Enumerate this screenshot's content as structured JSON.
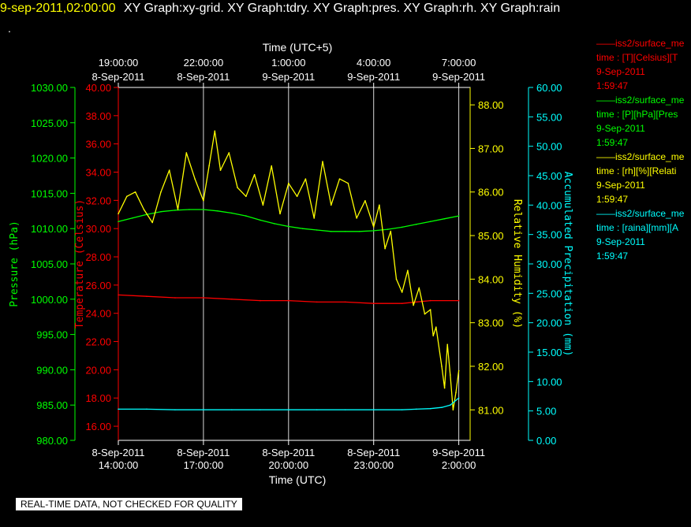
{
  "header": {
    "stamp": "9-sep-2011,02:00:00",
    "title": "XY Graph:xy-grid.  XY Graph:tdry.  XY Graph:pres.  XY Graph:rh.  XY Graph:rain",
    "dot": "."
  },
  "warning": "REAL-TIME DATA, NOT CHECKED FOR QUALITY",
  "legend": [
    {
      "line1": "——iss2/surface_me",
      "line2": "time : [T][Celsius][T",
      "line3": "9-Sep-2011",
      "line4": "1:59:47",
      "color": "#ff0000"
    },
    {
      "line1": "——iss2/surface_me",
      "line2": "time : [P][hPa][Pres",
      "line3": "9-Sep-2011",
      "line4": "1:59:47",
      "color": "#00ff00"
    },
    {
      "line1": "——iss2/surface_me",
      "line2": "time : [rh][%][Relati",
      "line3": "9-Sep-2011",
      "line4": "1:59:47",
      "color": "#ffff00"
    },
    {
      "line1": "——iss2/surface_me",
      "line2": "time : [raina][mm][A",
      "line3": "9-Sep-2011",
      "line4": "1:59:47",
      "color": "#00ffff"
    }
  ],
  "chart_data": {
    "type": "line",
    "x_bottom": {
      "label": "Time (UTC)",
      "ticks": [
        {
          "date": "8-Sep-2011",
          "time": "14:00:00",
          "hour": 0
        },
        {
          "date": "8-Sep-2011",
          "time": "17:00:00",
          "hour": 3
        },
        {
          "date": "8-Sep-2011",
          "time": "20:00:00",
          "hour": 6
        },
        {
          "date": "8-Sep-2011",
          "time": "23:00:00",
          "hour": 9
        },
        {
          "date": "9-Sep-2011",
          "time": "2:00:00",
          "hour": 12
        }
      ]
    },
    "x_top": {
      "label": "Time (UTC+5)",
      "ticks": [
        {
          "time": "19:00:00",
          "date": "8-Sep-2011",
          "hour": 0
        },
        {
          "time": "22:00:00",
          "date": "8-Sep-2011",
          "hour": 3
        },
        {
          "time": "1:00:00",
          "date": "9-Sep-2011",
          "hour": 6
        },
        {
          "time": "4:00:00",
          "date": "9-Sep-2011",
          "hour": 9
        },
        {
          "time": "7:00:00",
          "date": "9-Sep-2011",
          "hour": 12
        }
      ]
    },
    "axes": {
      "pressure": {
        "label": "Pressure (hPa)",
        "color": "#00ff00",
        "range": [
          980,
          1030
        ],
        "ticks": [
          "980.00",
          "985.00",
          "990.00",
          "995.00",
          "1000.00",
          "1005.00",
          "1010.00",
          "1015.00",
          "1020.00",
          "1025.00",
          "1030.00"
        ]
      },
      "temperature": {
        "label": "Temperature (Celsius)",
        "color": "#ff0000",
        "range": [
          15,
          40
        ],
        "ticks": [
          "16.00",
          "18.00",
          "20.00",
          "22.00",
          "24.00",
          "26.00",
          "28.00",
          "30.00",
          "32.00",
          "34.00",
          "36.00",
          "38.00",
          "40.00"
        ]
      },
      "humidity": {
        "label": "Relative Humidity (%)",
        "color": "#ffff00",
        "range": [
          80.3,
          88.4
        ],
        "ticks": [
          "81.00",
          "82.00",
          "83.00",
          "84.00",
          "85.00",
          "86.00",
          "87.00",
          "88.00"
        ]
      },
      "precip": {
        "label": "Accumulated Precipitation (mm)",
        "color": "#00ffff",
        "range": [
          0,
          60
        ],
        "ticks": [
          "0.00",
          "5.00",
          "10.00",
          "15.00",
          "20.00",
          "25.00",
          "30.00",
          "35.00",
          "40.00",
          "45.00",
          "50.00",
          "55.00",
          "60.00"
        ]
      }
    },
    "series": [
      {
        "axis": "pressure",
        "color": "#00ff00",
        "x": [
          0,
          0.5,
          1,
          1.5,
          2,
          2.5,
          3,
          3.5,
          4,
          4.5,
          5,
          5.5,
          6,
          6.5,
          7,
          7.5,
          8,
          8.5,
          9,
          9.5,
          10,
          10.5,
          11,
          11.5,
          12
        ],
        "y": [
          1011.0,
          1011.5,
          1012.0,
          1012.4,
          1012.6,
          1012.7,
          1012.7,
          1012.5,
          1012.2,
          1011.8,
          1011.2,
          1010.7,
          1010.3,
          1010.0,
          1009.8,
          1009.6,
          1009.6,
          1009.6,
          1009.7,
          1009.9,
          1010.2,
          1010.6,
          1011.0,
          1011.4,
          1011.8
        ]
      },
      {
        "axis": "temperature",
        "color": "#ff0000",
        "x": [
          0,
          1,
          2,
          3,
          4,
          5,
          6,
          7,
          8,
          9,
          10,
          11,
          12
        ],
        "y": [
          25.3,
          25.2,
          25.1,
          25.1,
          25.0,
          24.9,
          24.9,
          24.8,
          24.8,
          24.7,
          24.7,
          24.9,
          24.9
        ]
      },
      {
        "axis": "humidity",
        "color": "#ffff00",
        "x": [
          0,
          0.3,
          0.6,
          0.9,
          1.2,
          1.5,
          1.8,
          2.1,
          2.4,
          2.7,
          3.0,
          3.2,
          3.4,
          3.6,
          3.9,
          4.2,
          4.5,
          4.8,
          5.1,
          5.4,
          5.7,
          6.0,
          6.3,
          6.6,
          6.9,
          7.2,
          7.5,
          7.8,
          8.1,
          8.4,
          8.7,
          9.0,
          9.2,
          9.4,
          9.6,
          9.8,
          10.0,
          10.2,
          10.4,
          10.6,
          10.8,
          11.0,
          11.1,
          11.2,
          11.4,
          11.5,
          11.6,
          11.7,
          11.8,
          11.9,
          12.0
        ],
        "y": [
          85.5,
          85.9,
          86.0,
          85.6,
          85.3,
          86.0,
          86.5,
          85.6,
          86.9,
          86.3,
          85.8,
          86.6,
          87.4,
          86.5,
          86.9,
          86.1,
          85.9,
          86.4,
          85.7,
          86.6,
          85.5,
          86.2,
          85.9,
          86.3,
          85.4,
          86.7,
          85.7,
          86.3,
          86.2,
          85.4,
          85.8,
          85.2,
          85.7,
          84.7,
          85.1,
          84.0,
          83.7,
          84.2,
          83.4,
          83.8,
          83.2,
          83.3,
          82.7,
          82.9,
          82.0,
          81.5,
          82.5,
          81.8,
          81.0,
          81.4,
          81.9
        ]
      },
      {
        "axis": "precip",
        "color": "#00ffff",
        "x": [
          0,
          1,
          2,
          3,
          4,
          5,
          6,
          7,
          8,
          9,
          10,
          10.5,
          11,
          11.4,
          11.7,
          12
        ],
        "y": [
          5.3,
          5.3,
          5.2,
          5.2,
          5.2,
          5.2,
          5.2,
          5.2,
          5.2,
          5.2,
          5.2,
          5.3,
          5.4,
          5.6,
          6.0,
          7.2
        ]
      }
    ]
  }
}
